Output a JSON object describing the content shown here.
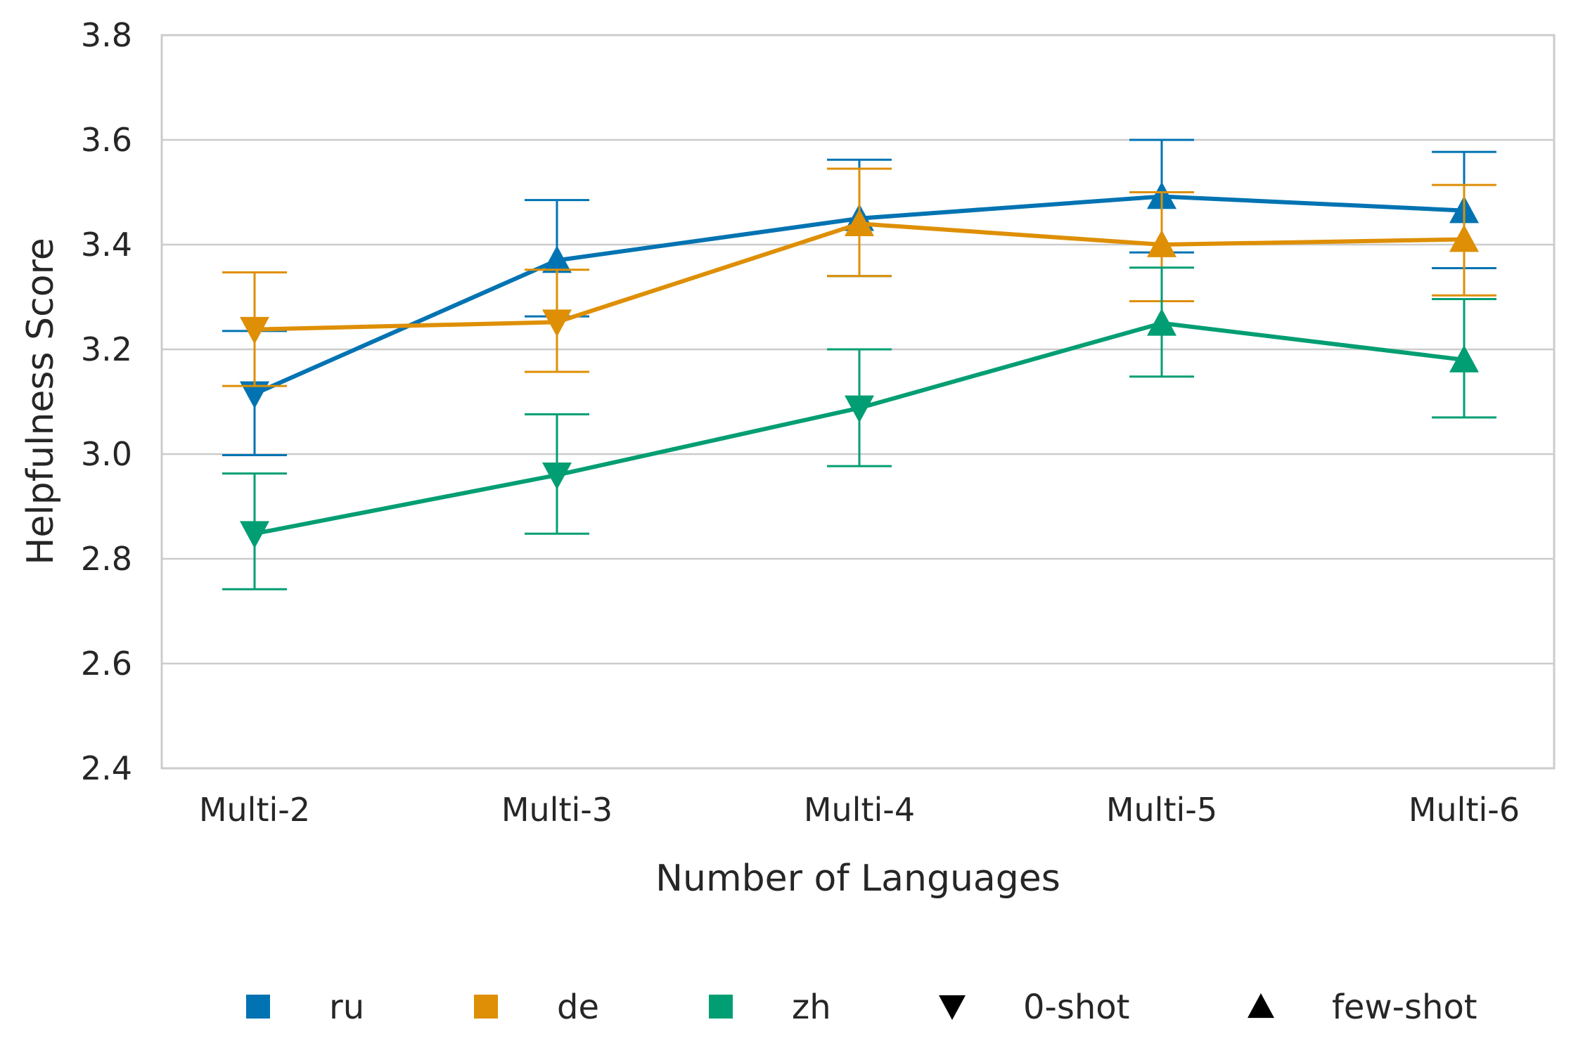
{
  "chart_data": {
    "type": "line",
    "xlabel": "Number of Languages",
    "ylabel": "Helpfulness Score",
    "categories": [
      "Multi-2",
      "Multi-3",
      "Multi-4",
      "Multi-5",
      "Multi-6"
    ],
    "ylim": [
      2.4,
      3.8
    ],
    "yticks": [
      "2.4",
      "2.6",
      "2.8",
      "3.0",
      "3.2",
      "3.4",
      "3.6",
      "3.8"
    ],
    "grid": true,
    "legend_position": "bottom",
    "series": [
      {
        "name": "ru",
        "color": "#0173b2",
        "values": [
          3.115,
          3.37,
          3.45,
          3.492,
          3.465
        ],
        "err_low": [
          2.998,
          3.263,
          3.34,
          3.385,
          3.355
        ],
        "err_high": [
          3.235,
          3.485,
          3.562,
          3.6,
          3.577
        ],
        "markers": [
          "down",
          "up",
          "up",
          "up",
          "up"
        ]
      },
      {
        "name": "de",
        "color": "#de8f05",
        "values": [
          3.238,
          3.252,
          3.44,
          3.4,
          3.41
        ],
        "err_low": [
          3.13,
          3.157,
          3.34,
          3.292,
          3.303
        ],
        "err_high": [
          3.347,
          3.352,
          3.545,
          3.5,
          3.514
        ],
        "markers": [
          "down",
          "down",
          "up",
          "up",
          "up"
        ]
      },
      {
        "name": "zh",
        "color": "#029e73",
        "values": [
          2.848,
          2.96,
          3.088,
          3.25,
          3.18
        ],
        "err_low": [
          2.742,
          2.848,
          2.977,
          3.148,
          3.07
        ],
        "err_high": [
          2.963,
          3.076,
          3.2,
          3.356,
          3.296
        ],
        "markers": [
          "down",
          "down",
          "down",
          "up",
          "up"
        ]
      }
    ],
    "legend": [
      {
        "label": "ru",
        "shape": "square",
        "color": "#0173b2"
      },
      {
        "label": "de",
        "shape": "square",
        "color": "#de8f05"
      },
      {
        "label": "zh",
        "shape": "square",
        "color": "#029e73"
      },
      {
        "label": "0-shot",
        "shape": "down",
        "color": "#000000"
      },
      {
        "label": "few-shot",
        "shape": "up",
        "color": "#000000"
      }
    ]
  }
}
